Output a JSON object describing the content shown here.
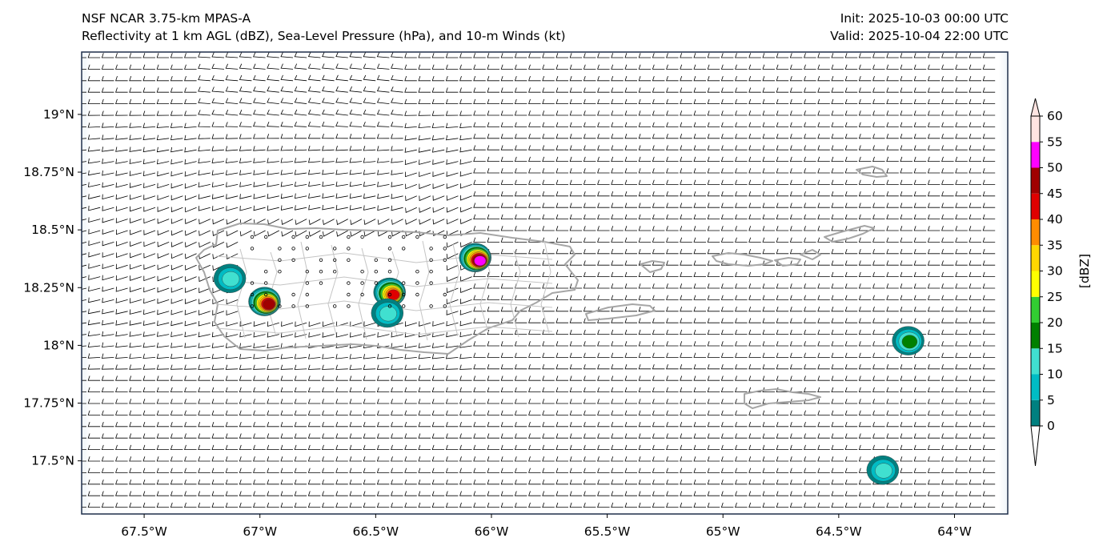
{
  "title": {
    "line1_left": "NSF NCAR 3.75-km MPAS-A",
    "line2_left": "Reflectivity at 1 km AGL (dBZ), Sea-Level Pressure (hPa), and 10-m Winds (kt)",
    "line1_right": "Init: 2025-10-03 00:00 UTC",
    "line2_right": "Valid: 2025-10-04 22:00 UTC"
  },
  "map": {
    "lon_range": [
      -67.77,
      -63.77
    ],
    "lat_range": [
      17.27,
      19.27
    ],
    "lon_ticks": [
      -67.5,
      -67.0,
      -66.5,
      -66.0,
      -65.5,
      -65.0,
      -64.5,
      -64.0
    ],
    "lon_tick_labels": [
      "67.5°W",
      "67°W",
      "66.5°W",
      "66°W",
      "65.5°W",
      "65°W",
      "64.5°W",
      "64°W"
    ],
    "lat_ticks": [
      17.5,
      17.75,
      18.0,
      18.25,
      18.5,
      18.75,
      19.0
    ],
    "lat_tick_labels": [
      "17.5°N",
      "17.75°N",
      "18°N",
      "18.25°N",
      "18.5°N",
      "18.75°N",
      "19°N"
    ],
    "coastline_color": "#a6a6a6",
    "frame_color": "#1f2f4a"
  },
  "colorbar": {
    "label": "[dBZ]",
    "ticks": [
      0,
      5,
      10,
      15,
      20,
      25,
      30,
      35,
      40,
      45,
      50,
      55,
      60
    ],
    "tick_labels": [
      "0",
      "5",
      "10",
      "15",
      "20",
      "25",
      "30",
      "35",
      "40",
      "45",
      "50",
      "55",
      "60"
    ],
    "colors": [
      "#008080",
      "#00bcc4",
      "#40e0d0",
      "#008000",
      "#32cd32",
      "#ffff00",
      "#ffd700",
      "#ff8c00",
      "#e00000",
      "#a00000",
      "#ff00ff",
      "#ffe4e1"
    ],
    "under_color": "#ffffff",
    "over_color": "#ffe4e1"
  },
  "reflectivity_cells": [
    {
      "lon": -67.13,
      "lat": 18.29,
      "max_dbz": 12
    },
    {
      "lon": -66.98,
      "lat": 18.19,
      "max_dbz": 45
    },
    {
      "lon": -66.44,
      "lat": 18.23,
      "max_dbz": 40
    },
    {
      "lon": -66.45,
      "lat": 18.14,
      "max_dbz": 12
    },
    {
      "lon": -66.07,
      "lat": 18.38,
      "max_dbz": 50
    },
    {
      "lon": -64.2,
      "lat": 18.02,
      "max_dbz": 18
    },
    {
      "lon": -64.31,
      "lat": 17.46,
      "max_dbz": 12
    }
  ]
}
